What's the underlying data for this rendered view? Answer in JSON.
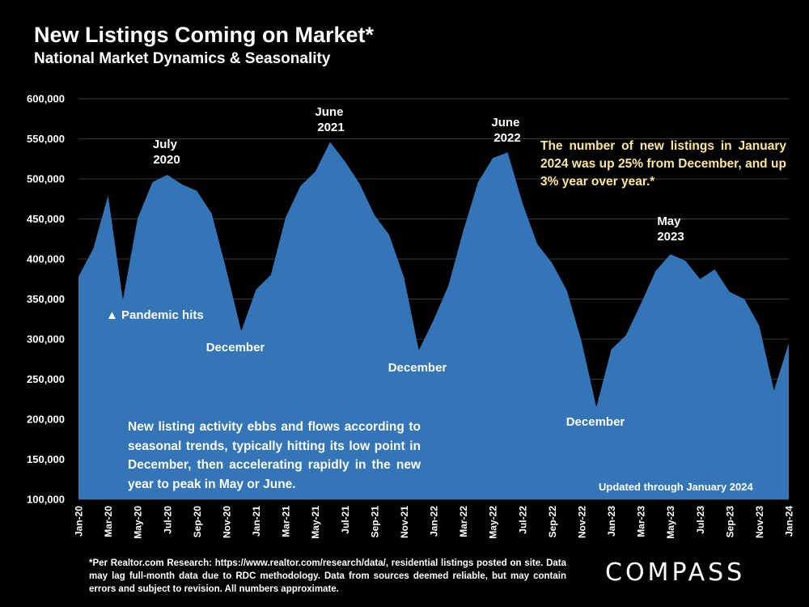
{
  "title": "New Listings Coming on Market*",
  "subtitle": "National Market Dynamics & Seasonality",
  "chart_data": {
    "type": "area",
    "ylim": [
      100000,
      600000
    ],
    "yticks": [
      "100,000",
      "150,000",
      "200,000",
      "250,000",
      "300,000",
      "350,000",
      "400,000",
      "450,000",
      "500,000",
      "550,000",
      "600,000"
    ],
    "ytick_values": [
      100000,
      150000,
      200000,
      250000,
      300000,
      350000,
      400000,
      450000,
      500000,
      550000,
      600000
    ],
    "xtick_labels": [
      "Jan-20",
      "Mar-20",
      "May-20",
      "Jul-20",
      "Sep-20",
      "Nov-20",
      "Jan-21",
      "Mar-21",
      "May-21",
      "Jul-21",
      "Sep-21",
      "Nov-21",
      "Jan-22",
      "Mar-22",
      "May-22",
      "Jul-22",
      "Sep-22",
      "Nov-22",
      "Jan-23",
      "Mar-23",
      "May-23",
      "Jul-23",
      "Sep-23",
      "Nov-23",
      "Jan-24"
    ],
    "categories": [
      "Jan-20",
      "Feb-20",
      "Mar-20",
      "Apr-20",
      "May-20",
      "Jun-20",
      "Jul-20",
      "Aug-20",
      "Sep-20",
      "Oct-20",
      "Nov-20",
      "Dec-20",
      "Jan-21",
      "Feb-21",
      "Mar-21",
      "Apr-21",
      "May-21",
      "Jun-21",
      "Jul-21",
      "Aug-21",
      "Sep-21",
      "Oct-21",
      "Nov-21",
      "Dec-21",
      "Jan-22",
      "Feb-22",
      "Mar-22",
      "Apr-22",
      "May-22",
      "Jun-22",
      "Jul-22",
      "Aug-22",
      "Sep-22",
      "Oct-22",
      "Nov-22",
      "Dec-22",
      "Jan-23",
      "Feb-23",
      "Mar-23",
      "Apr-23",
      "May-23",
      "Jun-23",
      "Jul-23",
      "Aug-23",
      "Sep-23",
      "Oct-23",
      "Nov-23",
      "Dec-23",
      "Jan-24"
    ],
    "values": [
      378000,
      413000,
      479000,
      349000,
      451000,
      496000,
      505000,
      493000,
      485000,
      457000,
      386000,
      310000,
      362000,
      380000,
      452000,
      491000,
      509000,
      546000,
      522000,
      494000,
      455000,
      430000,
      377000,
      286000,
      324000,
      367000,
      435000,
      496000,
      526000,
      533000,
      470000,
      419000,
      395000,
      361000,
      297000,
      215000,
      287000,
      305000,
      344000,
      385000,
      406000,
      398000,
      375000,
      387000,
      359000,
      350000,
      317000,
      236000,
      295000
    ],
    "annotations": [
      {
        "label": "July",
        "label2": "2020"
      },
      {
        "label": "June",
        "label2": "2021"
      },
      {
        "label": "June",
        "label2": "2022"
      },
      {
        "label": "May",
        "label2": "2023"
      },
      {
        "label": "December"
      },
      {
        "label": "December"
      },
      {
        "label": "December"
      },
      {
        "label": "▲ Pandemic hits"
      }
    ],
    "fill_color": "#3375b7",
    "grid_color": "#3a3a3a"
  },
  "callout": "The number of new listings in January 2024 was up 25% from December, and up 3% year over year.*",
  "note": "New listing activity ebbs and flows according to seasonal trends, typically hitting its low point in December, then accelerating rapidly in the new year to peak in May or June.",
  "updated": "Updated through January 2024",
  "footnote": "*Per Realtor.com Research: https://www.realtor.com/research/data/, residential listings posted on site. Data may lag full-month data due to RDC methodology. Data from sources deemed reliable, but may contain errors and subject to revision. All numbers approximate.",
  "logo": "COMPASS",
  "callout_color": "#ffe699"
}
